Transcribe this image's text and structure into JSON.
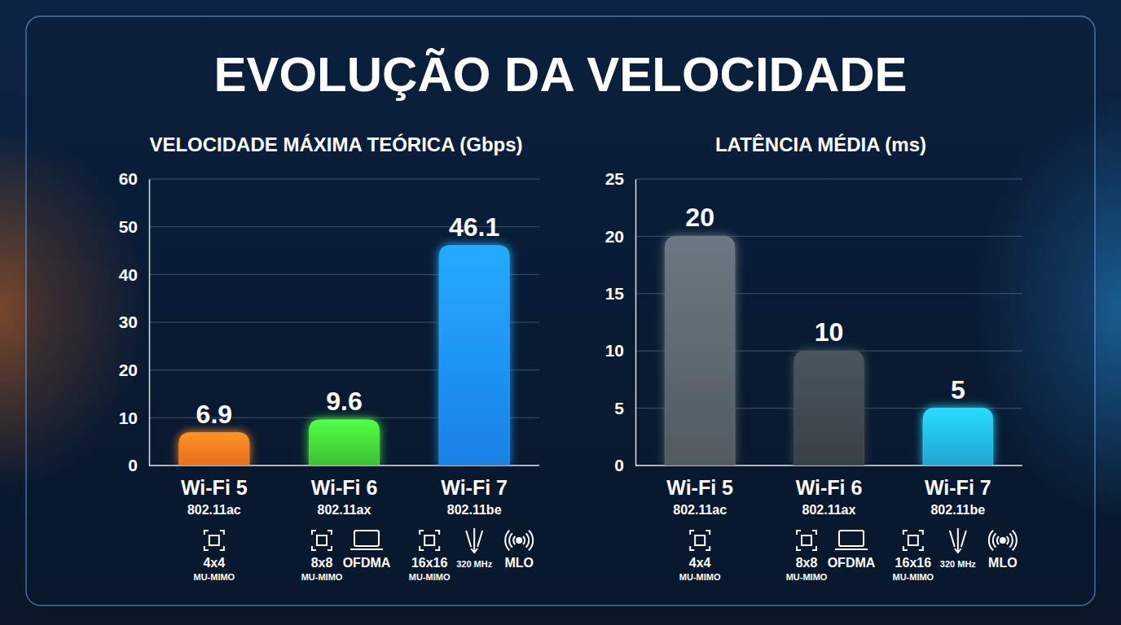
{
  "title": "EVOLUÇÃO DA VELOCIDADE",
  "chart_data": [
    {
      "type": "bar",
      "title": "VELOCIDADE MÁXIMA TEÓRICA (Gbps)",
      "categories": [
        "Wi-Fi 5",
        "Wi-Fi 6",
        "Wi-Fi 7"
      ],
      "category_details": [
        "802.11ac",
        "802.11ax",
        "802.11be"
      ],
      "values": [
        6.9,
        9.6,
        46.1
      ],
      "colors": [
        "#ff7a1e",
        "#45d63a",
        "#1e8fff"
      ],
      "ylim": [
        0,
        60
      ],
      "yticks": [
        0,
        10,
        20,
        30,
        40,
        50,
        60
      ],
      "grid": true,
      "data_labels": true,
      "annotations": [
        [
          {
            "text": "4x4",
            "note": "MU-MIMO"
          }
        ],
        [
          {
            "text": "8x8",
            "note": "MU-MIMO"
          },
          {
            "text": "OFDMA"
          }
        ],
        [
          {
            "text": "16x16",
            "note": "MU-MIMO"
          },
          {
            "note": "320 MHz"
          },
          {
            "text": "MLO"
          }
        ]
      ]
    },
    {
      "type": "bar",
      "title": "LATÊNCIA MÉDIA (ms)",
      "categories": [
        "Wi-Fi 5",
        "Wi-Fi 6",
        "Wi-Fi 7"
      ],
      "category_details": [
        "802.11ac",
        "802.11ax",
        "802.11be"
      ],
      "values": [
        20,
        10,
        5
      ],
      "colors": [
        "#5a646c",
        "#3e474e",
        "#22b8e8"
      ],
      "ylim": [
        0,
        25
      ],
      "yticks": [
        0,
        5,
        10,
        15,
        20,
        25
      ],
      "grid": true,
      "data_labels": true,
      "annotations": [
        [
          {
            "text": "4x4",
            "note": "MU-MIMO"
          }
        ],
        [
          {
            "text": "8x8",
            "note": "MU-MIMO"
          },
          {
            "text": "OFDMA"
          }
        ],
        [
          {
            "text": "16x16",
            "note": "MU-MIMO"
          },
          {
            "note": "320 MHz"
          },
          {
            "text": "MLO"
          }
        ]
      ]
    }
  ]
}
